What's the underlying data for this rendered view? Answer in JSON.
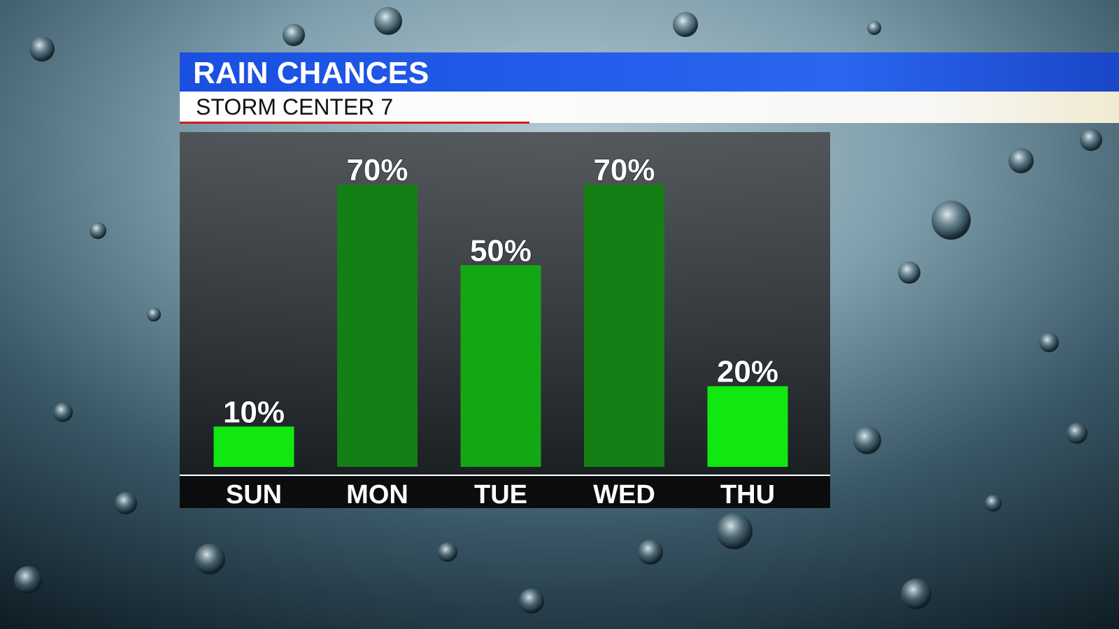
{
  "chart_data": {
    "type": "bar",
    "title": "RAIN CHANCES",
    "subtitle": "STORM CENTER 7",
    "categories": [
      "SUN",
      "MON",
      "TUE",
      "WED",
      "THU"
    ],
    "values": [
      10,
      70,
      50,
      70,
      20
    ],
    "value_labels": [
      "10%",
      "70%",
      "50%",
      "70%",
      "20%"
    ],
    "colors": [
      "#10e810",
      "#147f14",
      "#13a813",
      "#147f14",
      "#10e810"
    ]
  }
}
